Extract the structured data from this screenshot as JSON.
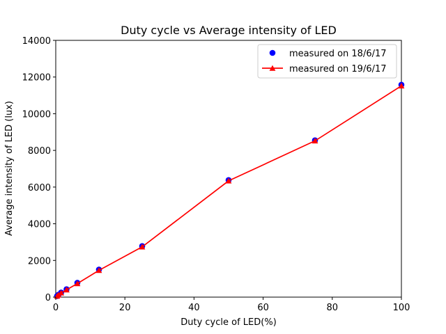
{
  "chart_data": {
    "type": "line",
    "title": "Duty cycle vs Average intensity of LED",
    "xlabel": "Duty cycle of LED(%)",
    "ylabel": "Average intensity of LED (lux)",
    "xlim": [
      0,
      100
    ],
    "ylim": [
      0,
      14000
    ],
    "x_ticks": [
      0,
      20,
      40,
      60,
      80,
      100
    ],
    "y_ticks": [
      0,
      2000,
      4000,
      6000,
      8000,
      10000,
      12000,
      14000
    ],
    "grid": false,
    "legend_position": "top-right",
    "series": [
      {
        "name": "measured on 18/6/17",
        "marker": "circle",
        "line": false,
        "color": "#0000ff",
        "x": [
          0.39,
          0.78,
          1.56,
          3.125,
          6.25,
          12.5,
          25,
          50,
          75,
          100
        ],
        "y": [
          60,
          130,
          250,
          430,
          780,
          1500,
          2780,
          6380,
          8550,
          11580
        ]
      },
      {
        "name": "measured on 19/6/17",
        "marker": "triangle",
        "line": true,
        "color": "#ff0000",
        "x": [
          0.39,
          0.78,
          1.56,
          3.125,
          6.25,
          12.5,
          25,
          50,
          75,
          100
        ],
        "y": [
          55,
          120,
          230,
          400,
          740,
          1460,
          2740,
          6340,
          8520,
          11520
        ]
      }
    ]
  }
}
